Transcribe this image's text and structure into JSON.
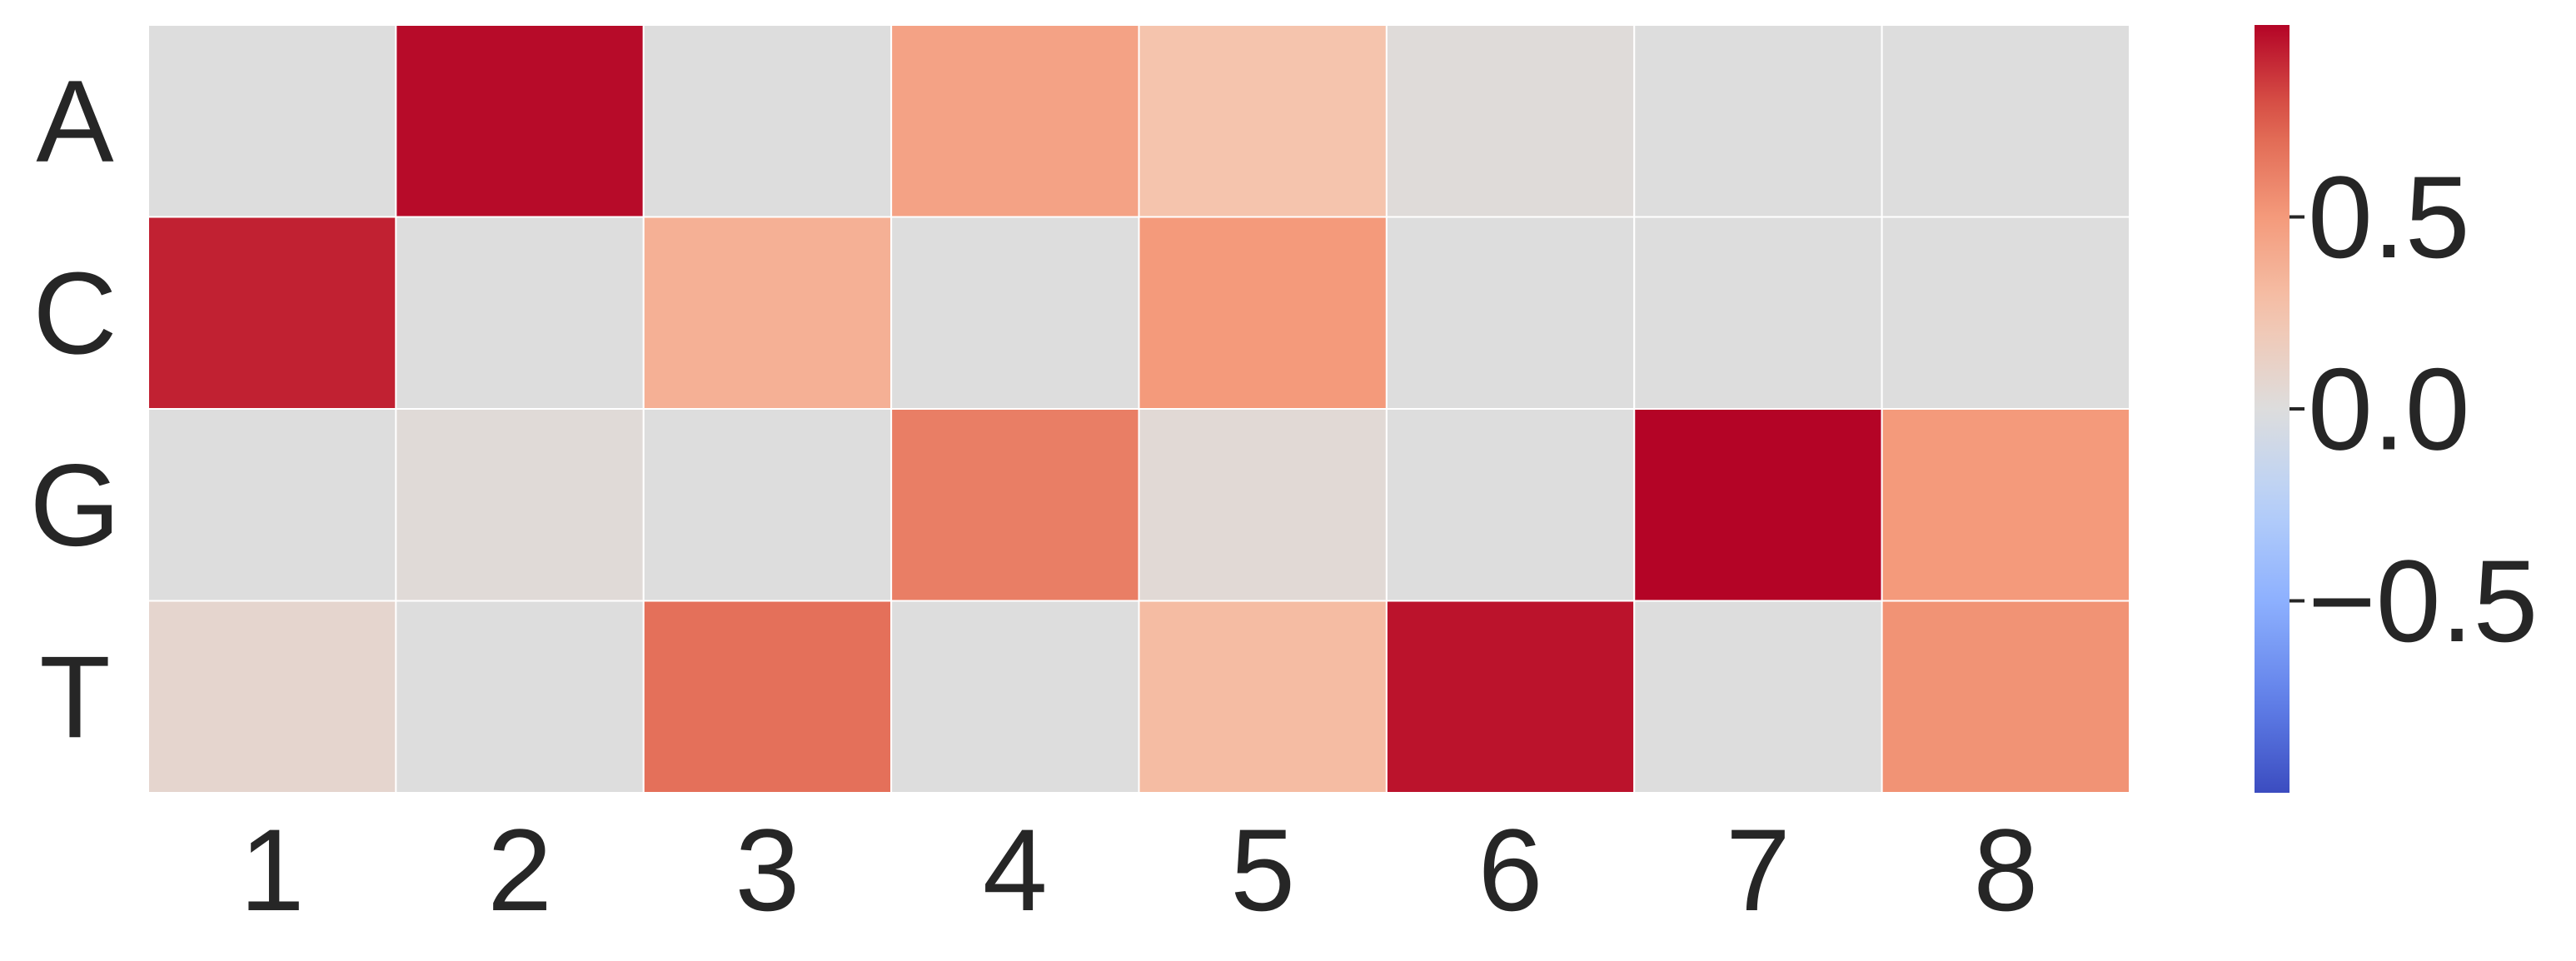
{
  "chart_data": {
    "type": "heatmap",
    "title": "",
    "xlabel": "",
    "ylabel": "",
    "x_categories": [
      "1",
      "2",
      "3",
      "4",
      "5",
      "6",
      "7",
      "8"
    ],
    "y_categories": [
      "A",
      "C",
      "G",
      "T"
    ],
    "values": [
      [
        0.0,
        0.98,
        0.0,
        0.45,
        0.25,
        0.02,
        0.0,
        0.0
      ],
      [
        0.92,
        0.0,
        0.37,
        0.0,
        0.5,
        0.0,
        0.0,
        0.0
      ],
      [
        0.0,
        0.03,
        0.0,
        0.62,
        0.04,
        0.0,
        1.0,
        0.5
      ],
      [
        0.08,
        0.0,
        0.68,
        0.0,
        0.3,
        0.96,
        0.0,
        0.53
      ]
    ],
    "colorbar": {
      "colormap": "coolwarm",
      "range": [
        -1.0,
        1.0
      ],
      "ticks": [
        0.5,
        0.0,
        -0.5
      ],
      "tick_labels": [
        "0.5",
        "0.0",
        "−0.5"
      ]
    },
    "cell_border_color": "#ffffff",
    "grid": false,
    "legend": "none"
  }
}
